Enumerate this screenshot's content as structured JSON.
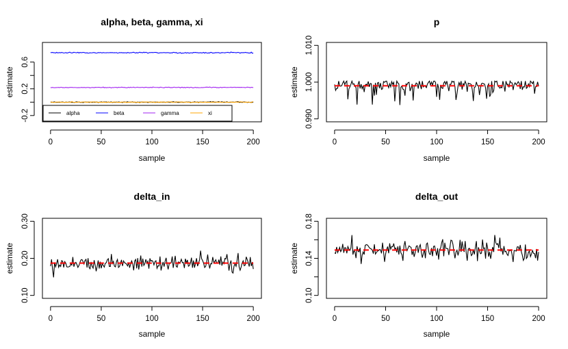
{
  "chart_data": [
    {
      "type": "line",
      "title": "alpha, beta, gamma, xi",
      "xlabel": "sample",
      "ylabel": "estimate",
      "xlim": [
        0,
        200
      ],
      "ylim": [
        -0.25,
        0.85
      ],
      "xticks": [
        0,
        50,
        100,
        150,
        200
      ],
      "yticks": [
        -0.2,
        0.2,
        0.6
      ],
      "yticks_minor": [
        0.0,
        0.4
      ],
      "legend": {
        "position": "bottom",
        "entries": [
          "alpha",
          "beta",
          "gamma",
          "xi"
        ]
      },
      "series": [
        {
          "name": "alpha",
          "color": "#000000",
          "mean": 0.0,
          "noise": 0.003
        },
        {
          "name": "beta",
          "color": "#0000ff",
          "mean": 0.74,
          "noise": 0.004
        },
        {
          "name": "gamma",
          "color": "#a020f0",
          "mean": 0.22,
          "noise": 0.003
        },
        {
          "name": "xi",
          "color": "#ffa500",
          "mean": 0.0,
          "noise": 0.003
        }
      ],
      "reference": null
    },
    {
      "type": "line",
      "title": "p",
      "xlabel": "sample",
      "ylabel": "estimate",
      "xlim": [
        0,
        200
      ],
      "ylim": [
        0.99,
        1.01
      ],
      "xticks": [
        0,
        50,
        100,
        150,
        200
      ],
      "yticks": [
        0.99,
        1.0,
        1.01
      ],
      "ytick_labels": [
        "0.990",
        "1.000",
        "1.010"
      ],
      "series": [
        {
          "name": "p",
          "color": "#000000",
          "mean": 0.9992,
          "noise": 0.0009,
          "spike_down": 0.0055
        }
      ],
      "reference": {
        "value": 0.999,
        "color": "#ff0000"
      }
    },
    {
      "type": "line",
      "title": "delta_in",
      "xlabel": "sample",
      "ylabel": "estimate",
      "xlim": [
        0,
        200
      ],
      "ylim": [
        0.1,
        0.3
      ],
      "xticks": [
        0,
        50,
        100,
        150,
        200
      ],
      "yticks": [
        0.1,
        0.2,
        0.3
      ],
      "ytick_labels": [
        "0.10",
        "0.20",
        "0.30"
      ],
      "series": [
        {
          "name": "delta_in",
          "color": "#000000",
          "mean": 0.187,
          "noise": 0.011
        }
      ],
      "reference": {
        "value": 0.187,
        "color": "#ff0000"
      }
    },
    {
      "type": "line",
      "title": "delta_out",
      "xlabel": "sample",
      "ylabel": "estimate",
      "xlim": [
        0,
        200
      ],
      "ylim": [
        0.1,
        0.18
      ],
      "xticks": [
        0,
        50,
        100,
        150,
        200
      ],
      "yticks": [
        0.1,
        0.14,
        0.18
      ],
      "yticks_minor": [
        0.12,
        0.16
      ],
      "ytick_labels": [
        "0.10",
        "0.14",
        "0.18"
      ],
      "series": [
        {
          "name": "delta_out",
          "color": "#000000",
          "mean": 0.149,
          "noise": 0.0055
        }
      ],
      "reference": {
        "value": 0.149,
        "color": "#ff0000"
      }
    }
  ]
}
